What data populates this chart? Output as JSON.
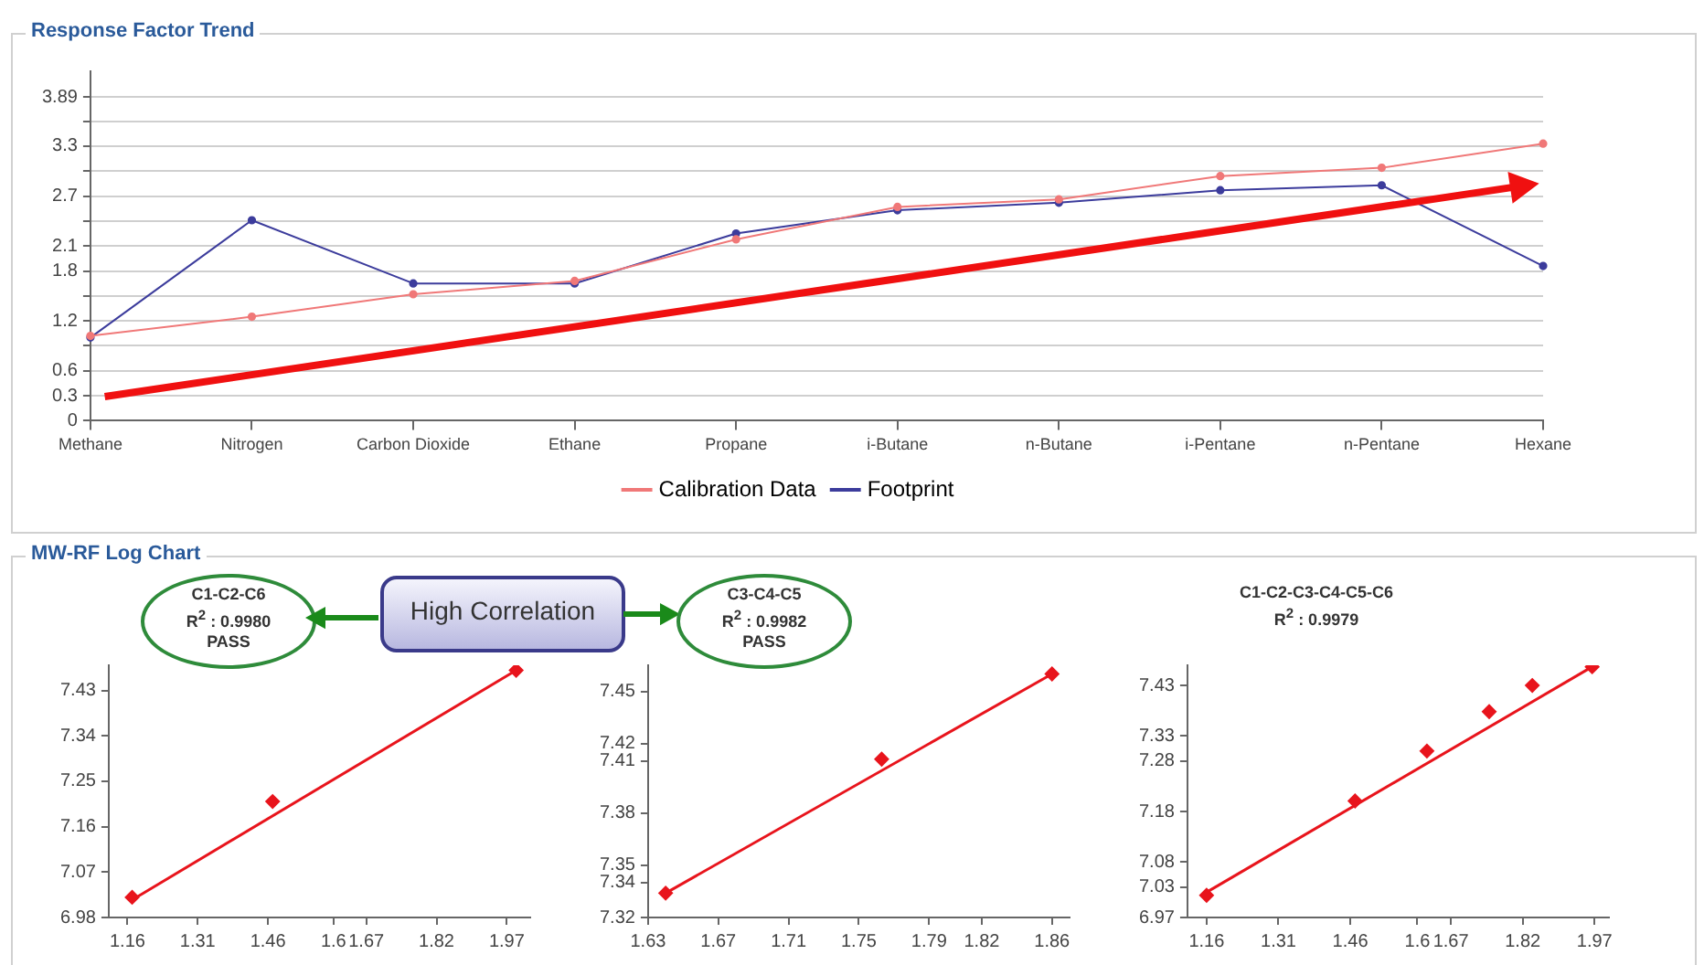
{
  "chart_data": [
    {
      "type": "line",
      "title": "Response Factor Trend",
      "categories": [
        "Methane",
        "Nitrogen",
        "Carbon Dioxide",
        "Ethane",
        "Propane",
        "i-Butane",
        "n-Butane",
        "i-Pentane",
        "n-Pentane",
        "Hexane"
      ],
      "series": [
        {
          "name": "Calibration Data",
          "color": "#f07878",
          "values": [
            1.02,
            1.25,
            1.52,
            1.68,
            2.18,
            2.57,
            2.66,
            2.94,
            3.04,
            3.33
          ]
        },
        {
          "name": "Footprint",
          "color": "#3c3c9c",
          "values": [
            1.0,
            2.41,
            1.65,
            1.65,
            2.25,
            2.53,
            2.62,
            2.77,
            2.83,
            1.86
          ]
        }
      ],
      "ylim": [
        0,
        4.2
      ],
      "yticks": [
        0,
        0.3,
        0.6,
        {
          "value": 0.9,
          "label": null
        },
        1.2,
        {
          "value": 1.5,
          "label": null
        },
        1.8,
        2.1,
        {
          "value": 2.4,
          "label": null
        },
        2.7,
        {
          "value": 3.0,
          "label": null
        },
        3.3,
        {
          "value": 3.6,
          "label": null
        },
        3.89
      ],
      "grid": "y",
      "legend": "bottom",
      "marker": "circle"
    },
    {
      "type": "scatter",
      "title": "C1-C2-C6",
      "subtitle": "R$^{2}$ : 0.9980",
      "annotations": [
        "PASS",
        "MW-RF Log Chart",
        "High Correlation"
      ],
      "xlim": [
        1.12,
        2.02
      ],
      "xticks": [
        1.16,
        1.31,
        1.46,
        1.6,
        1.67,
        1.82,
        1.97
      ],
      "ylim": [
        6.98,
        7.48
      ],
      "yticks": [
        6.98,
        7.07,
        7.16,
        7.25,
        7.34,
        7.43
      ],
      "series": [
        {
          "color": "#e8141c",
          "marker": "diamond",
          "x": [
            1.17,
            1.47,
            1.99
          ],
          "values": [
            7.02,
            7.21,
            7.47
          ]
        },
        {
          "type": "line",
          "color": "#e8141c",
          "marker": "none",
          "x": [
            1.17,
            1.99
          ],
          "values": [
            7.015,
            7.47
          ]
        }
      ]
    },
    {
      "type": "scatter",
      "title": "C3-C4-C5",
      "subtitle": "R$^{2}$ : 0.9982",
      "annotations": [
        "PASS"
      ],
      "xlim": [
        1.63,
        1.87
      ],
      "xticks": [
        1.63,
        1.67,
        1.71,
        1.75,
        1.79,
        1.82,
        1.86
      ],
      "ylim": [
        7.32,
        7.465
      ],
      "yticks": [
        7.32,
        7.34,
        7.35,
        7.38,
        7.41,
        7.42,
        7.45
      ],
      "series": [
        {
          "color": "#e8141c",
          "marker": "diamond",
          "x": [
            1.64,
            1.763,
            1.86
          ],
          "values": [
            7.334,
            7.411,
            7.46
          ]
        },
        {
          "type": "line",
          "color": "#e8141c",
          "marker": "none",
          "x": [
            1.64,
            1.86
          ],
          "values": [
            7.334,
            7.46
          ]
        }
      ]
    },
    {
      "type": "scatter",
      "title": "C1-C2-C3-C4-C5-C6",
      "subtitle": "R$^{2}$ : 0.9979",
      "xlim": [
        1.12,
        2.0
      ],
      "xticks": [
        1.16,
        1.31,
        1.46,
        1.6,
        1.67,
        1.82,
        1.97
      ],
      "ylim": [
        6.97,
        7.47
      ],
      "yticks": [
        6.97,
        7.03,
        7.08,
        7.18,
        7.28,
        7.33,
        7.43
      ],
      "series": [
        {
          "color": "#e8141c",
          "marker": "diamond",
          "x": [
            1.16,
            1.47,
            1.62,
            1.75,
            1.84,
            1.965
          ],
          "values": [
            7.014,
            7.201,
            7.3,
            7.378,
            7.43,
            7.467
          ]
        },
        {
          "type": "line",
          "color": "#e8141c",
          "marker": "none",
          "x": [
            1.16,
            1.965
          ],
          "values": [
            7.02,
            7.467
          ]
        }
      ]
    }
  ]
}
